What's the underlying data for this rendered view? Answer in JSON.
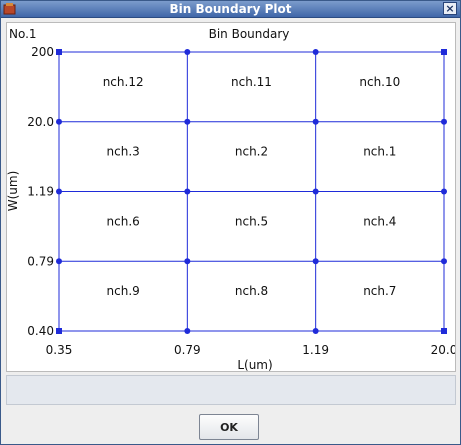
{
  "window": {
    "title": "Bin Boundary Plot"
  },
  "plot": {
    "plot_id": "No.1",
    "title": "Bin Boundary",
    "xlabel": "L(um)",
    "ylabel": "W(um)",
    "x_ticks": [
      "0.35",
      "0.79",
      "1.19",
      "20.0"
    ],
    "y_ticks": [
      "200",
      "20.0",
      "1.19",
      "0.79",
      "0.40"
    ],
    "cells": [
      [
        "nch.12",
        "nch.11",
        "nch.10"
      ],
      [
        "nch.3",
        "nch.2",
        "nch.1"
      ],
      [
        "nch.6",
        "nch.5",
        "nch.4"
      ],
      [
        "nch.9",
        "nch.8",
        "nch.7"
      ]
    ]
  },
  "colors": {
    "grid_line": "#1f2bd9",
    "plot_background": "#ffffff"
  },
  "buttons": {
    "ok_label": "OK"
  },
  "icons": {
    "app": "app-icon",
    "close": "close-icon"
  }
}
